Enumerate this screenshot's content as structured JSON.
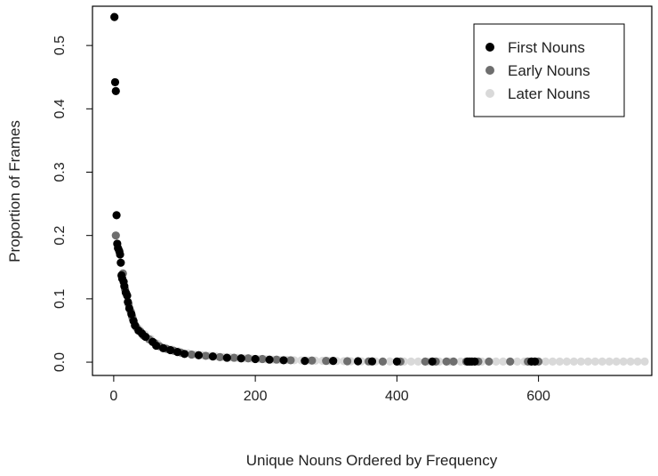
{
  "chart_data": {
    "type": "scatter",
    "title": "",
    "xlabel": "Unique Nouns Ordered by Frequency",
    "ylabel": "Proportion of Frames",
    "xlim": [
      -30,
      760
    ],
    "ylim": [
      -0.021,
      0.562
    ],
    "x_ticks": [
      0,
      200,
      400,
      600
    ],
    "x_tick_labels": [
      "0",
      "200",
      "400",
      "600"
    ],
    "y_ticks": [
      0.0,
      0.1,
      0.2,
      0.3,
      0.4,
      0.5
    ],
    "y_tick_labels": [
      "0.0",
      "0.1",
      "0.2",
      "0.3",
      "0.4",
      "0.5"
    ],
    "grid": false,
    "legend_position": "top-right",
    "series": [
      {
        "name": "First Nouns",
        "color": "#000000",
        "x": [
          1,
          2,
          3,
          4,
          5,
          6,
          8,
          9,
          10,
          11,
          12,
          14,
          15,
          17,
          19,
          20,
          22,
          25,
          28,
          30,
          35,
          40,
          45,
          55,
          60,
          70,
          80,
          90,
          100,
          120,
          140,
          160,
          180,
          200,
          220,
          240,
          270,
          310,
          345,
          365,
          400,
          450,
          500,
          503,
          506,
          510,
          590,
          595
        ],
        "y": [
          0.545,
          0.442,
          0.428,
          0.232,
          0.187,
          0.18,
          0.175,
          0.17,
          0.157,
          0.137,
          0.132,
          0.127,
          0.12,
          0.11,
          0.105,
          0.095,
          0.085,
          0.076,
          0.065,
          0.058,
          0.05,
          0.045,
          0.04,
          0.032,
          0.026,
          0.022,
          0.019,
          0.016,
          0.013,
          0.011,
          0.009,
          0.007,
          0.006,
          0.005,
          0.004,
          0.003,
          0.002,
          0.002,
          0.0015,
          0.0012,
          0.001,
          0.001,
          0.001,
          0.001,
          0.001,
          0.001,
          0.001,
          0.001
        ]
      },
      {
        "name": "Early Nouns",
        "color": "#6e6e6e",
        "x": [
          3,
          7,
          13,
          16,
          18,
          21,
          24,
          26,
          27,
          32,
          38,
          42,
          50,
          58,
          65,
          75,
          85,
          95,
          110,
          130,
          150,
          170,
          190,
          210,
          230,
          250,
          280,
          300,
          330,
          360,
          380,
          405,
          440,
          455,
          470,
          480,
          498,
          515,
          530,
          560,
          585,
          600
        ],
        "y": [
          0.2,
          0.178,
          0.14,
          0.115,
          0.108,
          0.092,
          0.08,
          0.072,
          0.068,
          0.055,
          0.048,
          0.042,
          0.036,
          0.03,
          0.025,
          0.021,
          0.018,
          0.015,
          0.012,
          0.01,
          0.008,
          0.007,
          0.006,
          0.005,
          0.004,
          0.003,
          0.0025,
          0.002,
          0.0015,
          0.0012,
          0.001,
          0.001,
          0.001,
          0.001,
          0.001,
          0.001,
          0.001,
          0.001,
          0.001,
          0.001,
          0.001,
          0.001
        ]
      },
      {
        "name": "Later Nouns",
        "color": "#d9d9d9",
        "x": [
          30,
          36,
          44,
          52,
          62,
          72,
          82,
          92,
          105,
          115,
          125,
          135,
          145,
          155,
          165,
          175,
          185,
          195,
          205,
          215,
          225,
          235,
          245,
          255,
          265,
          275,
          285,
          295,
          305,
          315,
          325,
          335,
          350,
          370,
          390,
          410,
          420,
          430,
          445,
          460,
          475,
          490,
          520,
          540,
          550,
          570,
          580,
          610,
          620,
          630,
          640,
          650,
          660,
          670,
          680,
          690,
          700,
          710,
          720,
          730,
          740,
          750
        ],
        "y": [
          0.06,
          0.052,
          0.044,
          0.037,
          0.029,
          0.023,
          0.02,
          0.017,
          0.014,
          0.012,
          0.011,
          0.01,
          0.009,
          0.008,
          0.0075,
          0.0068,
          0.006,
          0.0055,
          0.005,
          0.0045,
          0.004,
          0.0037,
          0.0034,
          0.003,
          0.0028,
          0.0026,
          0.0024,
          0.0022,
          0.002,
          0.0018,
          0.0016,
          0.0015,
          0.0014,
          0.0012,
          0.0011,
          0.001,
          0.001,
          0.001,
          0.001,
          0.001,
          0.001,
          0.001,
          0.001,
          0.001,
          0.001,
          0.001,
          0.001,
          0.001,
          0.001,
          0.001,
          0.001,
          0.001,
          0.001,
          0.001,
          0.001,
          0.001,
          0.001,
          0.001,
          0.001,
          0.001,
          0.001,
          0.001
        ]
      }
    ]
  }
}
